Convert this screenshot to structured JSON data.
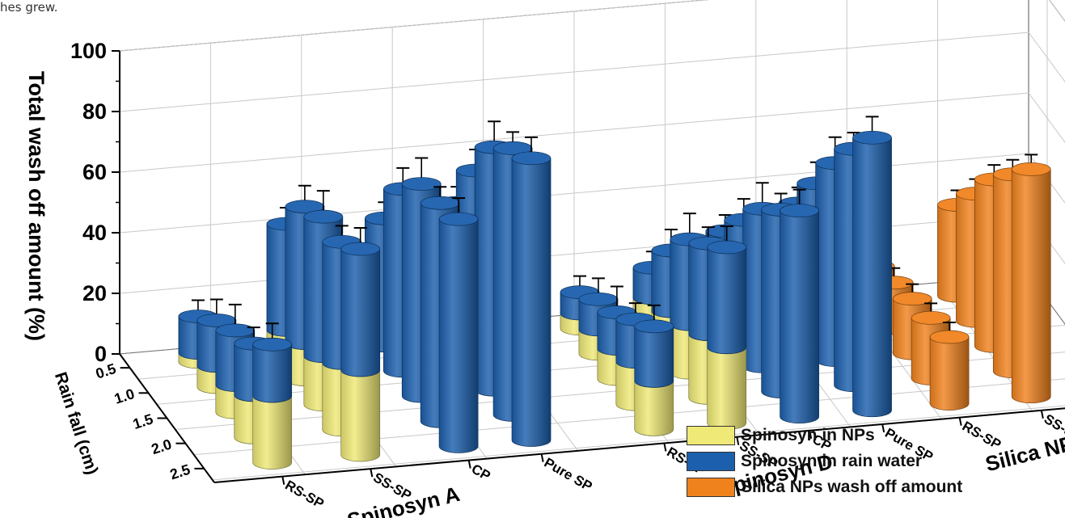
{
  "caption_fragment": "hes grew.",
  "colors": {
    "nps": "#efe977",
    "rain": "#1c5fad",
    "silica": "#f0821e",
    "axis": "#000000",
    "grid": "#c8c8c8"
  },
  "chart_data": {
    "type": "bar",
    "subtype": "3d-stacked-cylinder",
    "ylabel": "Total wash off amount (%)",
    "zlabel": "Rain fall (cm)",
    "ylim": [
      0,
      100
    ],
    "yticks": [
      "0",
      "20",
      "40",
      "60",
      "80",
      "100"
    ],
    "rainfall": [
      "0.5",
      "1.0",
      "1.5",
      "2.0",
      "2.5"
    ],
    "group_labels": [
      {
        "text": "Spinosyn A"
      },
      {
        "text": "Spinosyn D"
      },
      {
        "text": "Silica NPs"
      }
    ],
    "formulation_labels": [
      "RS-SP",
      "SS-SP",
      "CP",
      "Pure SP",
      "RS-SP",
      "SS-SP",
      "CP",
      "Pure SP",
      "RS-SP",
      "SS-SP"
    ],
    "legend": [
      "Spinosyn in NPs",
      "Spinosyn  in rain water",
      "Silica NPs wash off amount"
    ],
    "series": [
      {
        "group": "Spinosyn A",
        "formulation": "RS-SP",
        "nps": [
          3,
          7,
          9,
          14,
          22
        ],
        "rain": [
          12,
          15,
          18,
          17,
          17
        ]
      },
      {
        "group": "Spinosyn A",
        "formulation": "SS-SP",
        "nps": [
          8,
          12,
          16,
          22,
          28
        ],
        "rain": [
          35,
          45,
          46,
          40,
          40
        ]
      },
      {
        "group": "Spinosyn A",
        "formulation": "CP",
        "nps": [
          0,
          0,
          0,
          0,
          0
        ],
        "rain": [
          42,
          60,
          70,
          72,
          75
        ]
      },
      {
        "group": "Spinosyn A",
        "formulation": "Pure SP",
        "nps": [
          0,
          0,
          0,
          0,
          0
        ],
        "rain": [
          45,
          64,
          80,
          88,
          93
        ]
      },
      {
        "group": "Spinosyn D",
        "formulation": "RS-SP",
        "nps": [
          5,
          8,
          10,
          14,
          16
        ],
        "rain": [
          7,
          10,
          12,
          14,
          18
        ]
      },
      {
        "group": "Spinosyn D",
        "formulation": "SS-SP",
        "nps": [
          8,
          12,
          16,
          21,
          25
        ],
        "rain": [
          10,
          20,
          28,
          30,
          33
        ]
      },
      {
        "group": "Spinosyn D",
        "formulation": "CP",
        "nps": [
          0,
          0,
          0,
          0,
          0
        ],
        "rain": [
          28,
          40,
          52,
          60,
          68
        ]
      },
      {
        "group": "Spinosyn D",
        "formulation": "Pure SP",
        "nps": [
          0,
          0,
          0,
          0,
          0
        ],
        "rain": [
          35,
          50,
          65,
          78,
          90
        ]
      },
      {
        "group": "Silica NPs",
        "formulation": "RS-SP",
        "silica": [
          12,
          15,
          18,
          20,
          22
        ]
      },
      {
        "group": "Silica NPs",
        "formulation": "SS-SP",
        "silica": [
          30,
          42,
          55,
          65,
          75
        ]
      }
    ]
  }
}
